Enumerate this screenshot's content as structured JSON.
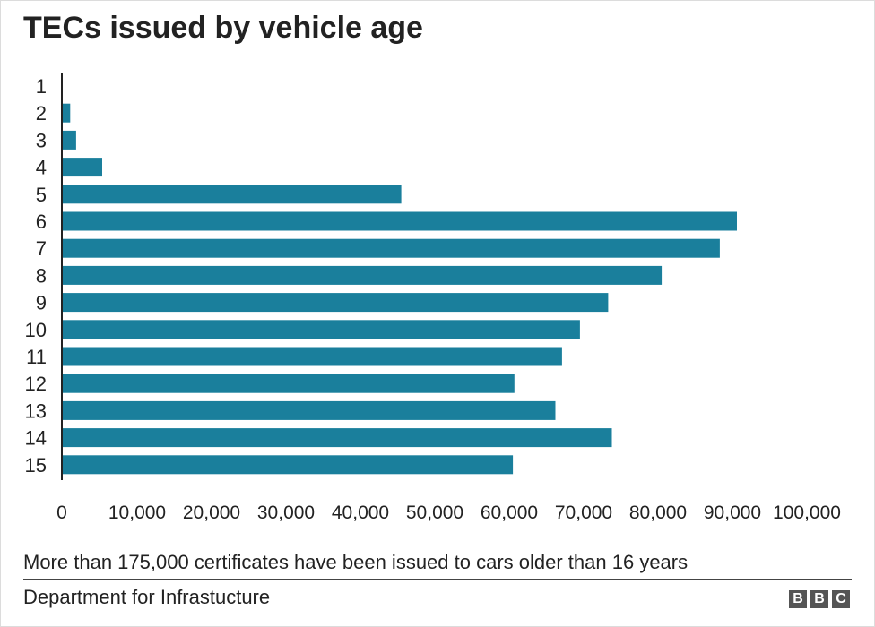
{
  "title": "TECs issued by vehicle age",
  "note": "More than 175,000 certificates have been issued to cars older than 16 years",
  "source": "Department for Infrastucture",
  "logo": [
    "B",
    "B",
    "C"
  ],
  "colors": {
    "bar": "#1a7f9c",
    "axis": "#222222",
    "text": "#222222"
  },
  "chart_data": {
    "type": "bar",
    "orientation": "horizontal",
    "title": "TECs issued by vehicle age",
    "categories": [
      "1",
      "2",
      "3",
      "4",
      "5",
      "6",
      "7",
      "8",
      "9",
      "10",
      "11",
      "12",
      "13",
      "14",
      "15"
    ],
    "values": [
      0,
      1000,
      1800,
      5300,
      45500,
      90600,
      88300,
      80500,
      73300,
      69500,
      67100,
      60700,
      66200,
      73800,
      60500
    ],
    "xlim": [
      0,
      100000
    ],
    "xticks": [
      0,
      10000,
      20000,
      30000,
      40000,
      50000,
      60000,
      70000,
      80000,
      90000,
      100000
    ],
    "xtick_labels": [
      "0",
      "10,000",
      "20,000",
      "30,000",
      "40,000",
      "50,000",
      "60,000",
      "70,000",
      "80,000",
      "90,000",
      "100,000"
    ],
    "xlabel": "",
    "ylabel": "",
    "grid": false,
    "legend": "none"
  }
}
